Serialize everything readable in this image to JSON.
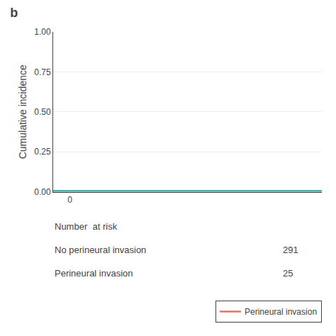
{
  "chart_data": {
    "type": "step",
    "title": "b",
    "y_label": "Cumulative incidence",
    "xlim": [
      -2,
      30
    ],
    "ylim": [
      0.0,
      1.0
    ],
    "xticks": [
      0
    ],
    "yticks": [
      {
        "value": 0.0,
        "label": "0.00"
      },
      {
        "value": 0.25,
        "label": "0.25"
      },
      {
        "value": 0.5,
        "label": "0.50"
      },
      {
        "value": 0.75,
        "label": "0.75"
      },
      {
        "value": 1.0,
        "label": "1.00"
      }
    ],
    "grid": true,
    "legend": "lower right",
    "series": [
      {
        "color": "#1ABFBF",
        "x": [
          -2,
          30
        ],
        "values": [
          0.005,
          0.005
        ]
      },
      {
        "name": "Perineural invasion",
        "color": "#E87060",
        "x": [
          -2,
          30
        ],
        "values": [
          0.0,
          0.0
        ]
      }
    ],
    "number_at_risk": {
      "title": "Number  at risk",
      "rows": [
        {
          "label": "No perineural invasion",
          "value": 291
        },
        {
          "label": "Perineural invasion",
          "value": 25
        }
      ]
    }
  }
}
